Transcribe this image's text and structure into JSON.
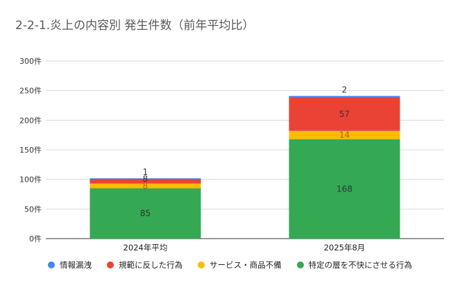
{
  "chart_data": {
    "type": "bar",
    "stacked": true,
    "title": "2-2-1.炎上の内容別 発生件数（前年平均比）",
    "categories": [
      "2024年平均",
      "2025年8月"
    ],
    "series": [
      {
        "name": "特定の層を不快にさせる行為",
        "color": "#34a853",
        "values": [
          85,
          168
        ]
      },
      {
        "name": "サービス・商品不備",
        "color": "#fbbc04",
        "values": [
          8,
          14
        ]
      },
      {
        "name": "規範に反した行為",
        "color": "#ea4335",
        "values": [
          8,
          57
        ]
      },
      {
        "name": "情報漏洩",
        "color": "#4285f4",
        "values": [
          1,
          2
        ]
      }
    ],
    "legend_order": [
      "情報漏洩",
      "規範に反した行為",
      "サービス・商品不備",
      "特定の層を不快にさせる行為"
    ],
    "yticks": [
      "0件",
      "50件",
      "100件",
      "150件",
      "200件",
      "250件",
      "300件"
    ],
    "ylim": [
      0,
      300
    ],
    "grid": true,
    "legend_position": "bottom",
    "xlabel": "",
    "ylabel": ""
  }
}
